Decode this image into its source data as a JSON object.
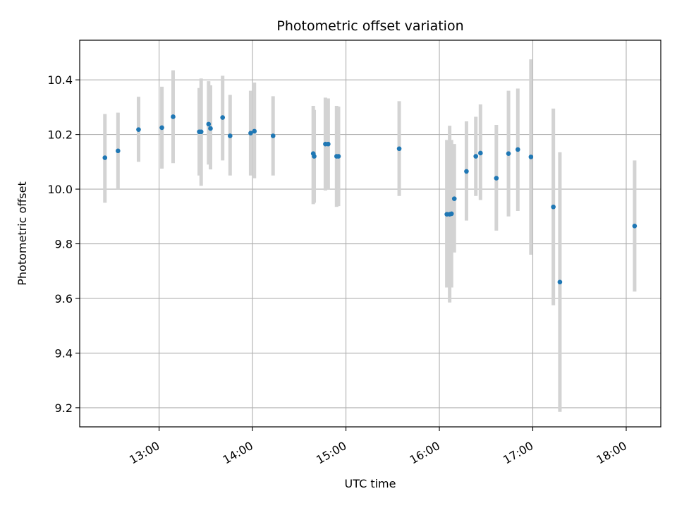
{
  "chart_data": {
    "type": "scatter",
    "title": "Photometric offset variation",
    "xlabel": "UTC time",
    "ylabel": "Photometric offset",
    "ylim": [
      9.13,
      10.545
    ],
    "xlim_hours": [
      12.15,
      18.37
    ],
    "x_ticks": [
      {
        "hour": 13,
        "label": "13:00"
      },
      {
        "hour": 14,
        "label": "14:00"
      },
      {
        "hour": 15,
        "label": "15:00"
      },
      {
        "hour": 16,
        "label": "16:00"
      },
      {
        "hour": 17,
        "label": "17:00"
      },
      {
        "hour": 18,
        "label": "18:00"
      }
    ],
    "y_ticks": [
      {
        "value": 9.2,
        "label": "9.2"
      },
      {
        "value": 9.4,
        "label": "9.4"
      },
      {
        "value": 9.6,
        "label": "9.6"
      },
      {
        "value": 9.8,
        "label": "9.8"
      },
      {
        "value": 10.0,
        "label": "10.0"
      },
      {
        "value": 10.2,
        "label": "10.2"
      },
      {
        "value": 10.4,
        "label": "10.4"
      }
    ],
    "grid": true,
    "point_color": "#1f77b4",
    "errorbar_color": "#d3d3d3",
    "points": [
      {
        "t": 12.42,
        "y": 10.115,
        "ylo": 9.95,
        "yhi": 10.275
      },
      {
        "t": 12.56,
        "y": 10.14,
        "ylo": 10.0,
        "yhi": 10.28
      },
      {
        "t": 12.78,
        "y": 10.218,
        "ylo": 10.1,
        "yhi": 10.338
      },
      {
        "t": 13.03,
        "y": 10.225,
        "ylo": 10.075,
        "yhi": 10.375
      },
      {
        "t": 13.15,
        "y": 10.265,
        "ylo": 10.095,
        "yhi": 10.435
      },
      {
        "t": 13.43,
        "y": 10.21,
        "ylo": 10.05,
        "yhi": 10.37
      },
      {
        "t": 13.45,
        "y": 10.21,
        "ylo": 10.012,
        "yhi": 10.405
      },
      {
        "t": 13.53,
        "y": 10.238,
        "ylo": 10.09,
        "yhi": 10.395
      },
      {
        "t": 13.55,
        "y": 10.222,
        "ylo": 10.072,
        "yhi": 10.38
      },
      {
        "t": 13.68,
        "y": 10.262,
        "ylo": 10.105,
        "yhi": 10.415
      },
      {
        "t": 13.76,
        "y": 10.195,
        "ylo": 10.05,
        "yhi": 10.345
      },
      {
        "t": 13.98,
        "y": 10.205,
        "ylo": 10.05,
        "yhi": 10.36
      },
      {
        "t": 14.02,
        "y": 10.212,
        "ylo": 10.04,
        "yhi": 10.39
      },
      {
        "t": 14.22,
        "y": 10.195,
        "ylo": 10.05,
        "yhi": 10.34
      },
      {
        "t": 14.65,
        "y": 10.13,
        "ylo": 9.945,
        "yhi": 10.305
      },
      {
        "t": 14.66,
        "y": 10.12,
        "ylo": 9.95,
        "yhi": 10.29
      },
      {
        "t": 14.78,
        "y": 10.165,
        "ylo": 9.995,
        "yhi": 10.335
      },
      {
        "t": 14.81,
        "y": 10.165,
        "ylo": 9.998,
        "yhi": 10.332
      },
      {
        "t": 14.9,
        "y": 10.12,
        "ylo": 9.935,
        "yhi": 10.305
      },
      {
        "t": 14.92,
        "y": 10.12,
        "ylo": 9.938,
        "yhi": 10.302
      },
      {
        "t": 15.57,
        "y": 10.148,
        "ylo": 9.975,
        "yhi": 10.322
      },
      {
        "t": 16.08,
        "y": 9.908,
        "ylo": 9.64,
        "yhi": 10.18
      },
      {
        "t": 16.11,
        "y": 9.908,
        "ylo": 9.585,
        "yhi": 10.232
      },
      {
        "t": 16.13,
        "y": 9.91,
        "ylo": 9.64,
        "yhi": 10.18
      },
      {
        "t": 16.16,
        "y": 9.965,
        "ylo": 9.768,
        "yhi": 10.165
      },
      {
        "t": 16.29,
        "y": 10.065,
        "ylo": 9.885,
        "yhi": 10.248
      },
      {
        "t": 16.39,
        "y": 10.12,
        "ylo": 9.975,
        "yhi": 10.265
      },
      {
        "t": 16.44,
        "y": 10.132,
        "ylo": 9.96,
        "yhi": 10.31
      },
      {
        "t": 16.61,
        "y": 10.04,
        "ylo": 9.848,
        "yhi": 10.235
      },
      {
        "t": 16.74,
        "y": 10.13,
        "ylo": 9.9,
        "yhi": 10.36
      },
      {
        "t": 16.84,
        "y": 10.145,
        "ylo": 9.92,
        "yhi": 10.368
      },
      {
        "t": 16.98,
        "y": 10.118,
        "ylo": 9.76,
        "yhi": 10.475
      },
      {
        "t": 17.22,
        "y": 9.935,
        "ylo": 9.575,
        "yhi": 10.295
      },
      {
        "t": 17.29,
        "y": 9.66,
        "ylo": 9.185,
        "yhi": 10.135
      },
      {
        "t": 18.09,
        "y": 9.865,
        "ylo": 9.625,
        "yhi": 10.105
      }
    ]
  }
}
